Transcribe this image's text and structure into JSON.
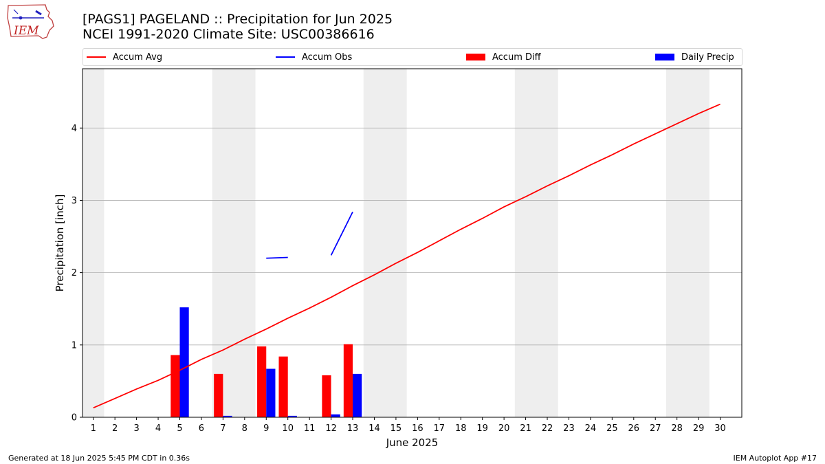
{
  "title": {
    "line1": "[PAGS1] PAGELAND :: Precipitation for Jun 2025",
    "line2": "NCEI 1991-2020 Climate Site: USC00386616"
  },
  "logo": {
    "text": "IEM"
  },
  "footer": {
    "left": "Generated at 18 Jun 2025 5:45 PM CDT in 0.36s",
    "right": "IEM Autoplot App #17"
  },
  "colors": {
    "avg": "#ff0000",
    "obs": "#0000ff",
    "diff": "#ff0000",
    "daily": "#0000ff",
    "weekend": "#eeeeee",
    "grid": "#b0b0b0"
  },
  "chart_data": {
    "type": "bar",
    "title": "[PAGS1] PAGELAND :: Precipitation for Jun 2025",
    "xlabel": "June 2025",
    "ylabel": "Precipitation [inch]",
    "xlim": [
      0.5,
      31
    ],
    "ylim": [
      0,
      4.82
    ],
    "yticks": [
      0,
      1,
      2,
      3,
      4
    ],
    "xticks": [
      1,
      2,
      3,
      4,
      5,
      6,
      7,
      8,
      9,
      10,
      11,
      12,
      13,
      14,
      15,
      16,
      17,
      18,
      19,
      20,
      21,
      22,
      23,
      24,
      25,
      26,
      27,
      28,
      29,
      30
    ],
    "grid": "y",
    "legend": {
      "placement": "top",
      "entries": [
        "Accum Avg",
        "Accum Obs",
        "Accum Diff",
        "Daily Precip"
      ]
    },
    "weekend_spans": [
      [
        0.5,
        1.5
      ],
      [
        6.5,
        8.5
      ],
      [
        13.5,
        15.5
      ],
      [
        20.5,
        22.5
      ],
      [
        27.5,
        29.5
      ]
    ],
    "series": [
      {
        "name": "Accum Avg",
        "kind": "line",
        "x": [
          1,
          2,
          3,
          4,
          5,
          6,
          7,
          8,
          9,
          10,
          11,
          12,
          13,
          14,
          15,
          16,
          17,
          18,
          19,
          20,
          21,
          22,
          23,
          24,
          25,
          26,
          27,
          28,
          29,
          30
        ],
        "values": [
          0.13,
          0.26,
          0.39,
          0.51,
          0.65,
          0.8,
          0.93,
          1.08,
          1.22,
          1.37,
          1.51,
          1.66,
          1.82,
          1.97,
          2.13,
          2.28,
          2.44,
          2.6,
          2.75,
          2.91,
          3.05,
          3.2,
          3.34,
          3.49,
          3.63,
          3.78,
          3.92,
          4.06,
          4.2,
          4.33
        ]
      },
      {
        "name": "Accum Obs",
        "kind": "line",
        "segments": [
          {
            "x": [
              9,
              10
            ],
            "values": [
              2.2,
              2.21
            ]
          },
          {
            "x": [
              12,
              13
            ],
            "values": [
              2.24,
              2.84
            ]
          }
        ]
      },
      {
        "name": "Accum Diff",
        "kind": "bar",
        "x": [
          5,
          7,
          9,
          10,
          12,
          13
        ],
        "values": [
          0.86,
          0.6,
          0.98,
          0.84,
          0.58,
          1.01
        ]
      },
      {
        "name": "Daily Precip",
        "kind": "bar",
        "x": [
          5,
          7,
          9,
          10,
          12,
          13
        ],
        "values": [
          1.52,
          0.02,
          0.67,
          0.02,
          0.04,
          0.6
        ]
      }
    ]
  }
}
